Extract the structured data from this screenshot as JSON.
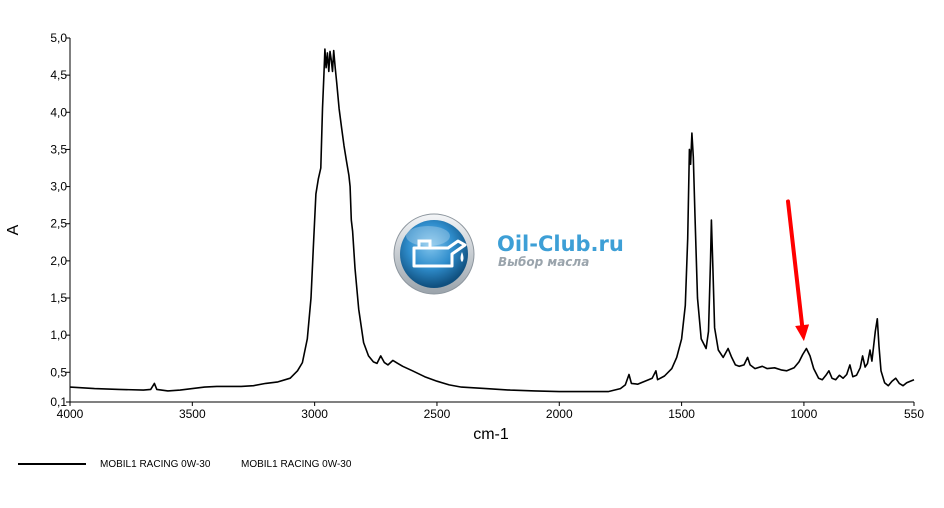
{
  "chart_data": {
    "type": "line",
    "xlabel": "cm-1",
    "ylabel": "A",
    "xlim": [
      4000,
      550
    ],
    "ylim": [
      0.1,
      5.0
    ],
    "x_reversed": true,
    "grid": false,
    "x_ticks": [
      {
        "value": 4000,
        "label": "4000"
      },
      {
        "value": 3500,
        "label": "3500"
      },
      {
        "value": 3000,
        "label": "3000"
      },
      {
        "value": 2500,
        "label": "2500"
      },
      {
        "value": 2000,
        "label": "2000"
      },
      {
        "value": 1500,
        "label": "1500"
      },
      {
        "value": 1000,
        "label": "1000"
      },
      {
        "value": 550,
        "label": "550"
      }
    ],
    "y_ticks": [
      {
        "value": 5.0,
        "label": "5,0"
      },
      {
        "value": 4.5,
        "label": "4,5"
      },
      {
        "value": 4.0,
        "label": "4,0"
      },
      {
        "value": 3.5,
        "label": "3,5"
      },
      {
        "value": 3.0,
        "label": "3,0"
      },
      {
        "value": 2.5,
        "label": "2,5"
      },
      {
        "value": 2.0,
        "label": "2,0"
      },
      {
        "value": 1.5,
        "label": "1,5"
      },
      {
        "value": 1.0,
        "label": "1,0"
      },
      {
        "value": 0.5,
        "label": "0,5"
      },
      {
        "value": 0.1,
        "label": "0,1"
      }
    ],
    "series": [
      {
        "name": "MOBIL1 RACING 0W-30",
        "color": "#000000",
        "points": [
          [
            4000,
            0.3
          ],
          [
            3900,
            0.28
          ],
          [
            3800,
            0.27
          ],
          [
            3700,
            0.26
          ],
          [
            3670,
            0.27
          ],
          [
            3655,
            0.35
          ],
          [
            3645,
            0.27
          ],
          [
            3600,
            0.25
          ],
          [
            3550,
            0.26
          ],
          [
            3500,
            0.28
          ],
          [
            3450,
            0.3
          ],
          [
            3400,
            0.31
          ],
          [
            3300,
            0.31
          ],
          [
            3250,
            0.32
          ],
          [
            3200,
            0.35
          ],
          [
            3150,
            0.37
          ],
          [
            3100,
            0.42
          ],
          [
            3070,
            0.52
          ],
          [
            3050,
            0.63
          ],
          [
            3030,
            0.95
          ],
          [
            3015,
            1.5
          ],
          [
            3005,
            2.2
          ],
          [
            2995,
            2.9
          ],
          [
            2985,
            3.1
          ],
          [
            2975,
            3.25
          ],
          [
            2968,
            4.05
          ],
          [
            2962,
            4.5
          ],
          [
            2958,
            4.85
          ],
          [
            2953,
            4.6
          ],
          [
            2948,
            4.8
          ],
          [
            2942,
            4.55
          ],
          [
            2937,
            4.82
          ],
          [
            2932,
            4.7
          ],
          [
            2927,
            4.55
          ],
          [
            2922,
            4.83
          ],
          [
            2916,
            4.6
          ],
          [
            2910,
            4.4
          ],
          [
            2900,
            4.05
          ],
          [
            2890,
            3.8
          ],
          [
            2880,
            3.55
          ],
          [
            2870,
            3.35
          ],
          [
            2860,
            3.15
          ],
          [
            2855,
            3.0
          ],
          [
            2850,
            2.55
          ],
          [
            2845,
            2.4
          ],
          [
            2835,
            1.9
          ],
          [
            2820,
            1.35
          ],
          [
            2800,
            0.9
          ],
          [
            2780,
            0.72
          ],
          [
            2760,
            0.64
          ],
          [
            2745,
            0.62
          ],
          [
            2730,
            0.72
          ],
          [
            2715,
            0.63
          ],
          [
            2700,
            0.6
          ],
          [
            2680,
            0.66
          ],
          [
            2660,
            0.62
          ],
          [
            2640,
            0.58
          ],
          [
            2600,
            0.52
          ],
          [
            2550,
            0.44
          ],
          [
            2500,
            0.38
          ],
          [
            2450,
            0.33
          ],
          [
            2400,
            0.3
          ],
          [
            2300,
            0.28
          ],
          [
            2200,
            0.26
          ],
          [
            2100,
            0.25
          ],
          [
            2000,
            0.24
          ],
          [
            1900,
            0.24
          ],
          [
            1800,
            0.24
          ],
          [
            1750,
            0.28
          ],
          [
            1730,
            0.33
          ],
          [
            1715,
            0.47
          ],
          [
            1705,
            0.35
          ],
          [
            1680,
            0.34
          ],
          [
            1650,
            0.38
          ],
          [
            1620,
            0.42
          ],
          [
            1605,
            0.52
          ],
          [
            1598,
            0.4
          ],
          [
            1570,
            0.45
          ],
          [
            1540,
            0.55
          ],
          [
            1520,
            0.7
          ],
          [
            1500,
            0.95
          ],
          [
            1485,
            1.4
          ],
          [
            1475,
            2.3
          ],
          [
            1468,
            3.5
          ],
          [
            1463,
            3.3
          ],
          [
            1458,
            3.72
          ],
          [
            1452,
            3.4
          ],
          [
            1445,
            2.6
          ],
          [
            1435,
            1.5
          ],
          [
            1420,
            0.95
          ],
          [
            1400,
            0.82
          ],
          [
            1390,
            1.05
          ],
          [
            1382,
            2.0
          ],
          [
            1378,
            2.55
          ],
          [
            1372,
            1.9
          ],
          [
            1365,
            1.1
          ],
          [
            1350,
            0.8
          ],
          [
            1330,
            0.7
          ],
          [
            1310,
            0.82
          ],
          [
            1295,
            0.7
          ],
          [
            1280,
            0.6
          ],
          [
            1265,
            0.58
          ],
          [
            1245,
            0.6
          ],
          [
            1230,
            0.7
          ],
          [
            1220,
            0.6
          ],
          [
            1200,
            0.55
          ],
          [
            1170,
            0.58
          ],
          [
            1150,
            0.55
          ],
          [
            1120,
            0.56
          ],
          [
            1090,
            0.53
          ],
          [
            1070,
            0.52
          ],
          [
            1040,
            0.56
          ],
          [
            1020,
            0.64
          ],
          [
            1005,
            0.74
          ],
          [
            990,
            0.82
          ],
          [
            975,
            0.72
          ],
          [
            960,
            0.55
          ],
          [
            940,
            0.42
          ],
          [
            925,
            0.4
          ],
          [
            910,
            0.46
          ],
          [
            898,
            0.52
          ],
          [
            885,
            0.42
          ],
          [
            870,
            0.4
          ],
          [
            855,
            0.46
          ],
          [
            840,
            0.42
          ],
          [
            825,
            0.47
          ],
          [
            812,
            0.6
          ],
          [
            800,
            0.44
          ],
          [
            785,
            0.46
          ],
          [
            770,
            0.56
          ],
          [
            760,
            0.72
          ],
          [
            750,
            0.57
          ],
          [
            740,
            0.62
          ],
          [
            730,
            0.8
          ],
          [
            722,
            0.65
          ],
          [
            715,
            0.85
          ],
          [
            708,
            1.05
          ],
          [
            700,
            1.22
          ],
          [
            693,
            0.85
          ],
          [
            685,
            0.52
          ],
          [
            670,
            0.36
          ],
          [
            655,
            0.32
          ],
          [
            640,
            0.38
          ],
          [
            625,
            0.42
          ],
          [
            610,
            0.35
          ],
          [
            595,
            0.32
          ],
          [
            580,
            0.36
          ],
          [
            565,
            0.38
          ],
          [
            550,
            0.4
          ]
        ]
      }
    ],
    "legend": {
      "placement": "bottom-left",
      "entries": [
        "MOBIL1 RACING 0W-30",
        "MOBIL1 RACING 0W-30"
      ]
    },
    "annotations": [
      {
        "type": "arrow",
        "color": "#ff0000",
        "points_to": [
          1000,
          0.92
        ],
        "from": [
          1065,
          2.8
        ]
      }
    ]
  },
  "watermark": {
    "title": "Oil-Club.ru",
    "subtitle": "Выбор масла",
    "logo_icon": "oil-can-icon"
  }
}
